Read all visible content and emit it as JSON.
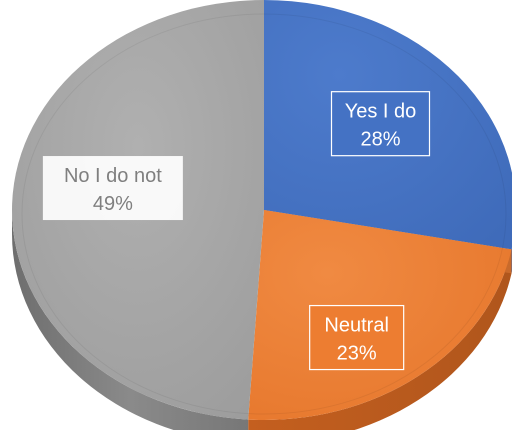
{
  "chart_data": {
    "type": "pie",
    "style": "3d",
    "title": "",
    "legend": "none",
    "slices": [
      {
        "label": "Yes I do",
        "value": 28,
        "display": "28%",
        "color": "#4472c4"
      },
      {
        "label": "Neutral",
        "value": 23,
        "display": "23%",
        "color": "#ed7d31"
      },
      {
        "label": "No I do not",
        "value": 49,
        "display": "49%",
        "color": "#a5a5a5"
      }
    ]
  }
}
